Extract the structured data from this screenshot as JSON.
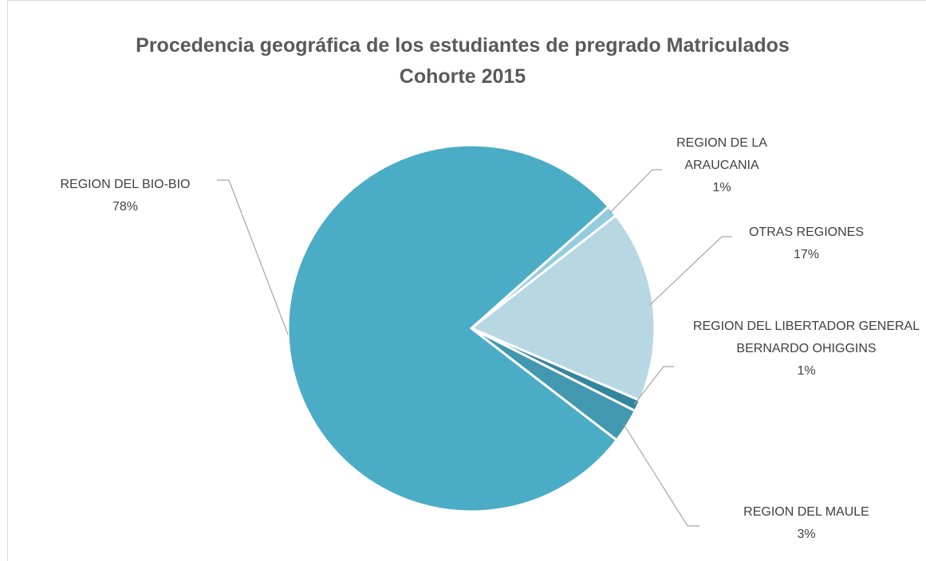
{
  "chart_data": {
    "type": "pie",
    "title": "Procedencia geográfica de los estudiantes de pregrado Matriculados Cohorte 2015",
    "categories": [
      "REGION DE LA ARAUCANIA",
      "OTRAS REGIONES",
      "REGION DEL LIBERTADOR GENERAL BERNARDO OHIGGINS",
      "REGION DEL MAULE",
      "REGION DEL BIO-BIO"
    ],
    "values": [
      1,
      17,
      1,
      3,
      78
    ],
    "value_labels": [
      "1%",
      "17%",
      "1%",
      "3%",
      "78%"
    ],
    "colors": [
      "#93cddd",
      "#b7d7e3",
      "#31859c",
      "#4198af",
      "#4bacc6"
    ]
  }
}
